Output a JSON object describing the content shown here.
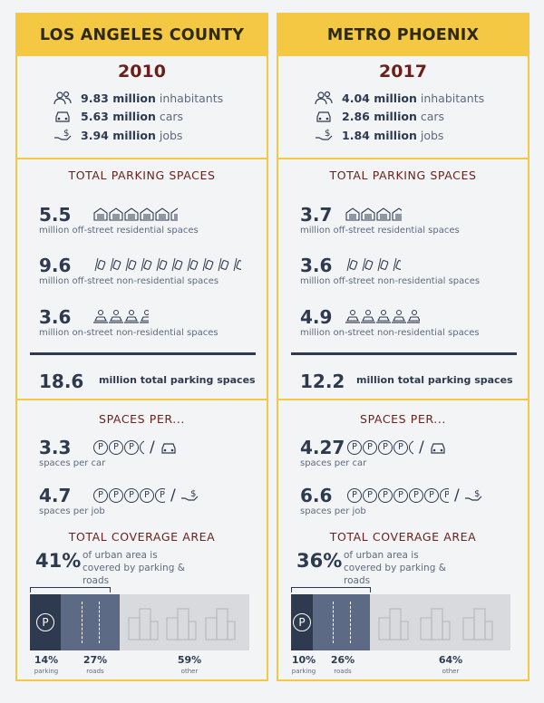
{
  "columns": [
    {
      "title": "LOS ANGELES COUNTY",
      "year": "2010",
      "stats": [
        {
          "value": "9.83 million",
          "unit": "inhabitants",
          "icon": "people-icon"
        },
        {
          "value": "5.63 million",
          "unit": "cars",
          "icon": "car-icon"
        },
        {
          "value": "3.94 million",
          "unit": "jobs",
          "icon": "money-hand-icon"
        }
      ],
      "parking_title": "TOTAL PARKING SPACES",
      "parking": [
        {
          "value": "5.5",
          "desc": "million off-street residential spaces",
          "icon": "garage-icon",
          "count": 5.5
        },
        {
          "value": "9.6",
          "desc": "million off-street non-residential spaces",
          "icon": "parking-lot-icon",
          "count": 9.6
        },
        {
          "value": "3.6",
          "desc": "million on-street non-residential spaces",
          "icon": "street-parking-icon",
          "count": 3.6
        }
      ],
      "total_value": "18.6",
      "total_label": "million total parking spaces",
      "per_title": "SPACES PER...",
      "per": [
        {
          "value": "3.3",
          "desc": "spaces per car",
          "count": 3.3,
          "icon": "car-icon"
        },
        {
          "value": "4.7",
          "desc": "spaces per job",
          "count": 4.7,
          "icon": "money-hand-icon"
        }
      ],
      "coverage_title": "TOTAL COVERAGE AREA",
      "coverage_pct": "41%",
      "coverage_text": "of urban area is covered by parking & roads",
      "breakdown": [
        {
          "pct": "14%",
          "label": "parking",
          "value": 14
        },
        {
          "pct": "27%",
          "label": "roads",
          "value": 27
        },
        {
          "pct": "59%",
          "label": "other",
          "value": 59
        }
      ]
    },
    {
      "title": "METRO PHOENIX",
      "year": "2017",
      "stats": [
        {
          "value": "4.04 million",
          "unit": "inhabitants",
          "icon": "people-icon"
        },
        {
          "value": "2.86 million",
          "unit": "cars",
          "icon": "car-icon"
        },
        {
          "value": "1.84 million",
          "unit": "jobs",
          "icon": "money-hand-icon"
        }
      ],
      "parking_title": "TOTAL PARKING SPACES",
      "parking": [
        {
          "value": "3.7",
          "desc": "million off-street residential spaces",
          "icon": "garage-icon",
          "count": 3.7
        },
        {
          "value": "3.6",
          "desc": "million off-street non-residential spaces",
          "icon": "parking-lot-icon",
          "count": 3.6
        },
        {
          "value": "4.9",
          "desc": "million on-street non-residential spaces",
          "icon": "street-parking-icon",
          "count": 4.9
        }
      ],
      "total_value": "12.2",
      "total_label": "million total parking spaces",
      "per_title": "SPACES PER...",
      "per": [
        {
          "value": "4.27",
          "desc": "spaces per car",
          "count": 4.27,
          "icon": "car-icon"
        },
        {
          "value": "6.6",
          "desc": "spaces per job",
          "count": 6.6,
          "icon": "money-hand-icon"
        }
      ],
      "coverage_title": "TOTAL COVERAGE AREA",
      "coverage_pct": "36%",
      "coverage_text": "of urban area is covered by parking & roads",
      "breakdown": [
        {
          "pct": "10%",
          "label": "parking",
          "value": 10
        },
        {
          "pct": "26%",
          "label": "roads",
          "value": 26
        },
        {
          "pct": "64%",
          "label": "other",
          "value": 64
        }
      ]
    }
  ],
  "colors": {
    "accent": "#f4c842",
    "maroon": "#6b1f1a",
    "navy": "#2e3a4f",
    "roads": "#5c6a85",
    "other": "#d9dadd"
  }
}
